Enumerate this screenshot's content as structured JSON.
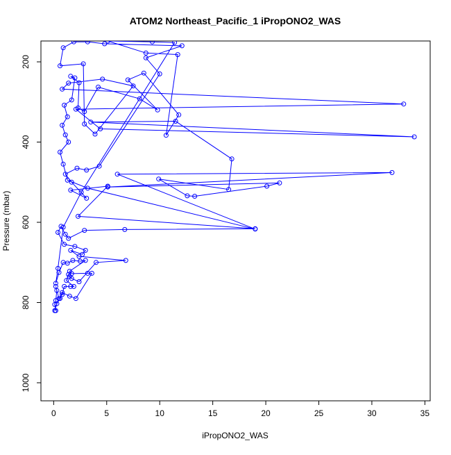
{
  "chart_data": {
    "type": "line",
    "title": "ATOM2 Northeast_Pacific_1 iPropONO2_WAS",
    "xlabel": "iPropONO2_WAS",
    "ylabel": "Pressure (mbar)",
    "xlim": [
      -1.2,
      35.5
    ],
    "ylim": [
      1045,
      148
    ],
    "y_reversed": true,
    "x_ticks": [
      0,
      5,
      10,
      15,
      20,
      25,
      30,
      35
    ],
    "y_ticks": [
      200,
      400,
      600,
      800,
      1000
    ],
    "grid": false,
    "legend": "none",
    "series_color": "#0000ff",
    "marker": "open-circle",
    "series": [
      {
        "points": [
          [
            0.2,
            820
          ],
          [
            0.1,
            805
          ],
          [
            0.2,
            795
          ],
          [
            0.3,
            770
          ],
          [
            0.2,
            760
          ],
          [
            0.5,
            790
          ],
          [
            0.8,
            780
          ],
          [
            1.0,
            760
          ],
          [
            1.6,
            760
          ],
          [
            1.9,
            760
          ],
          [
            1.2,
            745
          ],
          [
            1.4,
            730
          ],
          [
            1.5,
            735
          ],
          [
            1.7,
            740
          ],
          [
            2.4,
            748
          ],
          [
            4.0,
            700
          ],
          [
            6.8,
            695
          ],
          [
            2.4,
            685
          ],
          [
            1.6,
            670
          ],
          [
            2.7,
            680
          ],
          [
            3.0,
            670
          ],
          [
            2.0,
            660
          ],
          [
            1.0,
            655
          ],
          [
            0.4,
            625
          ],
          [
            0.7,
            610
          ],
          [
            1.1,
            630
          ],
          [
            1.4,
            640
          ],
          [
            2.9,
            620
          ],
          [
            6.7,
            618
          ],
          [
            19.0,
            616
          ],
          [
            2.3,
            585
          ],
          [
            5.1,
            510
          ],
          [
            1.6,
            520
          ],
          [
            3.1,
            540
          ],
          [
            1.7,
            500
          ],
          [
            1.1,
            480
          ],
          [
            2.2,
            465
          ],
          [
            3.1,
            470
          ],
          [
            4.3,
            460
          ],
          [
            10.0,
            230
          ],
          [
            8.7,
            190
          ],
          [
            12.1,
            160
          ],
          [
            4.8,
            155
          ],
          [
            3.2,
            150
          ],
          [
            1.9,
            150
          ],
          [
            0.9,
            165
          ],
          [
            0.6,
            210
          ],
          [
            2.8,
            205
          ],
          [
            2.9,
            355
          ],
          [
            3.9,
            380
          ],
          [
            7.5,
            260
          ],
          [
            4.6,
            243
          ],
          [
            1.4,
            253
          ],
          [
            0.8,
            268
          ],
          [
            33.0,
            305
          ],
          [
            2.1,
            318
          ],
          [
            4.4,
            367
          ],
          [
            34.0,
            387
          ],
          [
            3.5,
            350
          ],
          [
            11.5,
            348
          ],
          [
            16.8,
            442
          ],
          [
            16.5,
            518
          ],
          [
            9.9,
            492
          ],
          [
            12.6,
            534
          ],
          [
            13.3,
            535
          ],
          [
            20.1,
            510
          ],
          [
            21.3,
            502
          ],
          [
            5.1,
            512
          ],
          [
            31.9,
            476
          ],
          [
            6.0,
            480
          ],
          [
            19.0,
            617
          ],
          [
            3.2,
            515
          ],
          [
            1.3,
            495
          ],
          [
            0.9,
            455
          ],
          [
            0.6,
            425
          ],
          [
            1.4,
            400
          ],
          [
            1.1,
            382
          ],
          [
            0.8,
            358
          ],
          [
            1.3,
            337
          ],
          [
            1.0,
            308
          ],
          [
            1.7,
            295
          ],
          [
            2.0,
            240
          ],
          [
            1.6,
            236
          ],
          [
            2.4,
            252
          ],
          [
            2.3,
            315
          ],
          [
            2.9,
            324
          ],
          [
            4.2,
            263
          ],
          [
            8.1,
            292
          ],
          [
            9.8,
            320
          ],
          [
            7.0,
            245
          ],
          [
            8.5,
            228
          ],
          [
            11.8,
            332
          ],
          [
            10.6,
            383
          ],
          [
            11.7,
            182
          ],
          [
            8.7,
            178
          ],
          [
            5.1,
            148
          ],
          [
            9.3,
            150
          ],
          [
            11.4,
            152
          ],
          [
            2.6,
            525
          ],
          [
            0.9,
            612
          ],
          [
            0.4,
            715
          ],
          [
            0.2,
            752
          ],
          [
            0.5,
            725
          ],
          [
            0.9,
            700
          ],
          [
            1.3,
            702
          ],
          [
            1.8,
            695
          ],
          [
            2.5,
            697
          ],
          [
            3.0,
            695
          ],
          [
            1.5,
            722
          ],
          [
            1.7,
            728
          ],
          [
            3.2,
            727
          ],
          [
            3.6,
            727
          ],
          [
            2.1,
            790
          ],
          [
            1.5,
            784
          ],
          [
            0.8,
            775
          ],
          [
            0.6,
            790
          ],
          [
            0.3,
            803
          ],
          [
            0.1,
            820
          ]
        ]
      }
    ]
  }
}
